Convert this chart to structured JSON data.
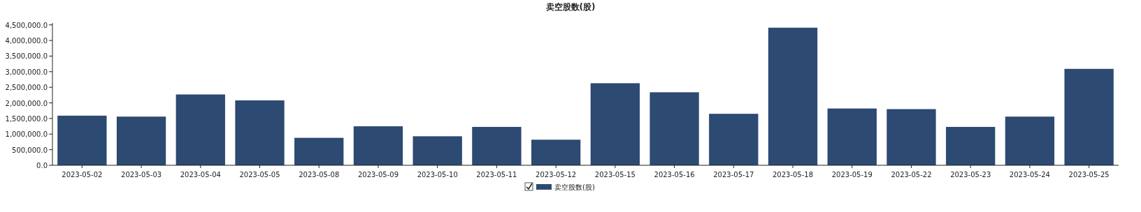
{
  "chart_data": {
    "type": "bar",
    "title": "卖空股数(股)",
    "categories": [
      "2023-05-02",
      "2023-05-03",
      "2023-05-04",
      "2023-05-05",
      "2023-05-08",
      "2023-05-09",
      "2023-05-10",
      "2023-05-11",
      "2023-05-12",
      "2023-05-15",
      "2023-05-16",
      "2023-05-17",
      "2023-05-18",
      "2023-05-19",
      "2023-05-22",
      "2023-05-23",
      "2023-05-24",
      "2023-05-25"
    ],
    "series": [
      {
        "name": "卖空股数(股)",
        "color": "#2c4a72",
        "values": [
          1590000,
          1560000,
          2270000,
          2080000,
          880000,
          1250000,
          930000,
          1230000,
          820000,
          2630000,
          2340000,
          1650000,
          4410000,
          1820000,
          1800000,
          1230000,
          1560000,
          3090000
        ]
      }
    ],
    "ylim": [
      0,
      4560000
    ],
    "yticks": [
      {
        "value": 0,
        "label": "0.0"
      },
      {
        "value": 500000,
        "label": "500,000.0"
      },
      {
        "value": 1000000,
        "label": "1,000,000.0"
      },
      {
        "value": 1500000,
        "label": "1,500,000.0"
      },
      {
        "value": 2000000,
        "label": "2,000,000.0"
      },
      {
        "value": 2500000,
        "label": "2,500,000.0"
      },
      {
        "value": 3000000,
        "label": "3,000,000.0"
      },
      {
        "value": 3500000,
        "label": "3,500,000.0"
      },
      {
        "value": 4000000,
        "label": "4,000,000.0"
      },
      {
        "value": 4500000,
        "label": "4,500,000.0"
      }
    ],
    "grid": false,
    "legend": "bottom"
  }
}
